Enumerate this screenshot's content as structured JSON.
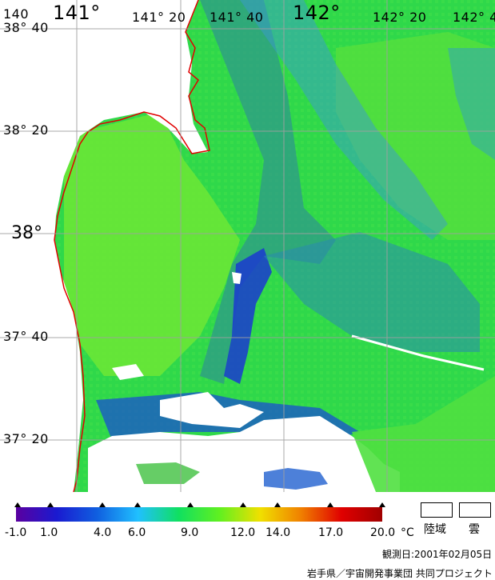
{
  "map": {
    "lon_labels": [
      "140",
      "141°",
      "141° 20",
      "141° 40",
      "142°",
      "142° 20",
      "142° 4"
    ],
    "lat_labels": [
      "38° 40",
      "38° 20",
      "38°",
      "37° 40",
      "37° 20"
    ]
  },
  "legend": {
    "ticks": [
      "-1.0",
      "1.0",
      "4.0",
      "6.0",
      "9.0",
      "12.0",
      "14.0",
      "17.0",
      "20.0"
    ],
    "unit": "°C",
    "land_label": "陸域",
    "cloud_label": "雲",
    "colors": [
      "#5a00a0",
      "#1a1ad0",
      "#1060e0",
      "#20c0ff",
      "#10e060",
      "#60f020",
      "#f0e000",
      "#f08000",
      "#e00000",
      "#a00000"
    ]
  },
  "footer": {
    "observation_date": "観測日:2001年02月05日",
    "credit": "岩手県／宇宙開発事業団  共同プロジェクト"
  }
}
